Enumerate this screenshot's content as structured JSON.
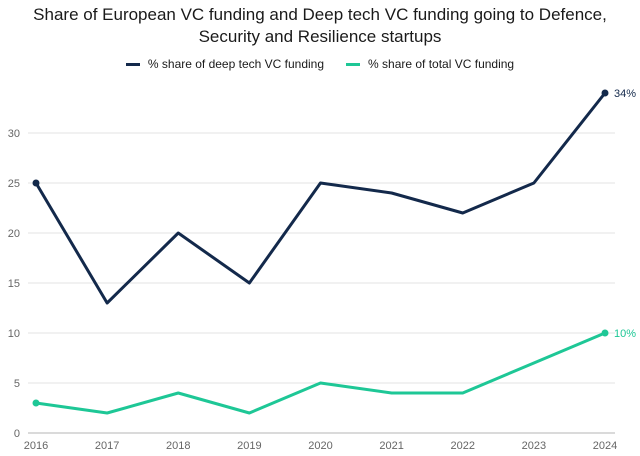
{
  "chart_data": {
    "type": "line",
    "title_line1": "Share of European VC funding and Deep tech VC funding  going to Defence,",
    "title_line2": "Security and Resilience startups",
    "categories": [
      "2016",
      "2017",
      "2018",
      "2019",
      "2020",
      "2021",
      "2022",
      "2023",
      "2024"
    ],
    "series": [
      {
        "name": "% share of deep tech VC funding",
        "values": [
          25,
          13,
          20,
          15,
          25,
          24,
          22,
          25,
          34
        ],
        "color": "#13294b",
        "end_label": "34%"
      },
      {
        "name": "% share of total VC funding",
        "values": [
          3,
          2,
          4,
          2,
          5,
          4,
          4,
          7,
          10
        ],
        "color": "#1ec796",
        "end_label": "10%"
      }
    ],
    "yticks": [
      0,
      5,
      10,
      15,
      20,
      25,
      30
    ],
    "ylim": [
      0,
      36
    ],
    "grid": true,
    "legend_position": "top-center"
  }
}
